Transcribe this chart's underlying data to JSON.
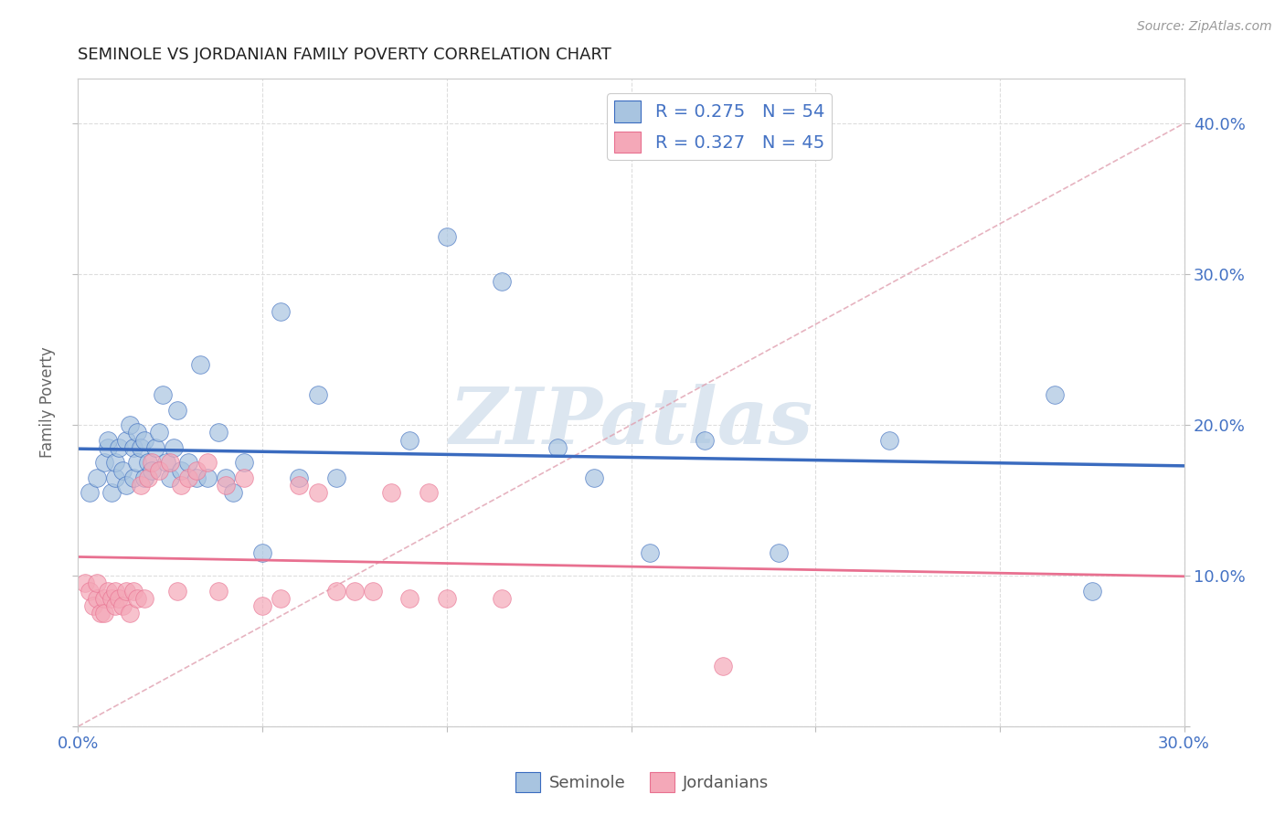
{
  "title": "SEMINOLE VS JORDANIAN FAMILY POVERTY CORRELATION CHART",
  "source_text": "Source: ZipAtlas.com",
  "ylabel": "Family Poverty",
  "xlim": [
    0,
    0.3
  ],
  "ylim": [
    0,
    0.43
  ],
  "xticks": [
    0.0,
    0.05,
    0.1,
    0.15,
    0.2,
    0.25,
    0.3
  ],
  "yticks": [
    0.0,
    0.1,
    0.2,
    0.3,
    0.4
  ],
  "seminole_R": 0.275,
  "seminole_N": 54,
  "jordanian_R": 0.327,
  "jordanian_N": 45,
  "seminole_color": "#a8c4e0",
  "jordanian_color": "#f4a8b8",
  "seminole_line_color": "#3a6bbf",
  "jordanian_line_color": "#e87090",
  "ref_line_color": "#e0a0b0",
  "watermark": "ZIPatlas",
  "watermark_color": "#dce6f0",
  "title_color": "#222222",
  "axis_label_color": "#4472c4",
  "ylabel_color": "#666666",
  "seminole_x": [
    0.003,
    0.005,
    0.007,
    0.008,
    0.008,
    0.009,
    0.01,
    0.01,
    0.011,
    0.012,
    0.013,
    0.013,
    0.014,
    0.015,
    0.015,
    0.016,
    0.016,
    0.017,
    0.018,
    0.018,
    0.019,
    0.02,
    0.021,
    0.022,
    0.023,
    0.024,
    0.025,
    0.026,
    0.027,
    0.028,
    0.03,
    0.032,
    0.033,
    0.035,
    0.038,
    0.04,
    0.042,
    0.045,
    0.05,
    0.055,
    0.06,
    0.065,
    0.07,
    0.09,
    0.1,
    0.115,
    0.13,
    0.14,
    0.155,
    0.17,
    0.19,
    0.22,
    0.265,
    0.275
  ],
  "seminole_y": [
    0.155,
    0.165,
    0.175,
    0.185,
    0.19,
    0.155,
    0.165,
    0.175,
    0.185,
    0.17,
    0.19,
    0.16,
    0.2,
    0.165,
    0.185,
    0.175,
    0.195,
    0.185,
    0.165,
    0.19,
    0.175,
    0.17,
    0.185,
    0.195,
    0.22,
    0.175,
    0.165,
    0.185,
    0.21,
    0.17,
    0.175,
    0.165,
    0.24,
    0.165,
    0.195,
    0.165,
    0.155,
    0.175,
    0.115,
    0.275,
    0.165,
    0.22,
    0.165,
    0.19,
    0.325,
    0.295,
    0.185,
    0.165,
    0.115,
    0.19,
    0.115,
    0.19,
    0.22,
    0.09
  ],
  "jordanian_x": [
    0.002,
    0.003,
    0.004,
    0.005,
    0.005,
    0.006,
    0.007,
    0.007,
    0.008,
    0.009,
    0.01,
    0.01,
    0.011,
    0.012,
    0.013,
    0.014,
    0.015,
    0.016,
    0.017,
    0.018,
    0.019,
    0.02,
    0.022,
    0.025,
    0.027,
    0.028,
    0.03,
    0.032,
    0.035,
    0.038,
    0.04,
    0.045,
    0.05,
    0.055,
    0.06,
    0.065,
    0.07,
    0.075,
    0.08,
    0.085,
    0.09,
    0.095,
    0.1,
    0.115,
    0.175
  ],
  "jordanian_y": [
    0.095,
    0.09,
    0.08,
    0.085,
    0.095,
    0.075,
    0.085,
    0.075,
    0.09,
    0.085,
    0.08,
    0.09,
    0.085,
    0.08,
    0.09,
    0.075,
    0.09,
    0.085,
    0.16,
    0.085,
    0.165,
    0.175,
    0.17,
    0.175,
    0.09,
    0.16,
    0.165,
    0.17,
    0.175,
    0.09,
    0.16,
    0.165,
    0.08,
    0.085,
    0.16,
    0.155,
    0.09,
    0.09,
    0.09,
    0.155,
    0.085,
    0.155,
    0.085,
    0.085,
    0.04
  ],
  "background_color": "#ffffff",
  "grid_color": "#dddddd"
}
